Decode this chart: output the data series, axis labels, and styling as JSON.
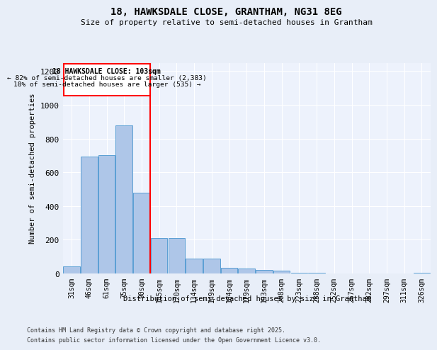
{
  "title_line1": "18, HAWKSDALE CLOSE, GRANTHAM, NG31 8EG",
  "title_line2": "Size of property relative to semi-detached houses in Grantham",
  "xlabel": "Distribution of semi-detached houses by size in Grantham",
  "ylabel": "Number of semi-detached properties",
  "categories": [
    "31sqm",
    "46sqm",
    "61sqm",
    "75sqm",
    "90sqm",
    "105sqm",
    "120sqm",
    "134sqm",
    "149sqm",
    "164sqm",
    "179sqm",
    "193sqm",
    "208sqm",
    "223sqm",
    "238sqm",
    "252sqm",
    "267sqm",
    "282sqm",
    "297sqm",
    "311sqm",
    "326sqm"
  ],
  "values": [
    40,
    695,
    700,
    880,
    480,
    210,
    210,
    90,
    90,
    35,
    30,
    20,
    15,
    5,
    5,
    2,
    2,
    1,
    1,
    0,
    5
  ],
  "bar_color": "#aec6e8",
  "bar_edge_color": "#5a9fd4",
  "vline_color": "red",
  "annotation_title": "18 HAWKSDALE CLOSE: 103sqm",
  "annotation_line1": "← 82% of semi-detached houses are smaller (2,383)",
  "annotation_line2": "18% of semi-detached houses are larger (535) →",
  "annotation_box_color": "red",
  "ylim": [
    0,
    1250
  ],
  "yticks": [
    0,
    200,
    400,
    600,
    800,
    1000,
    1200
  ],
  "footer_line1": "Contains HM Land Registry data © Crown copyright and database right 2025.",
  "footer_line2": "Contains public sector information licensed under the Open Government Licence v3.0.",
  "bg_color": "#e8eef8",
  "plot_bg_color": "#edf2fc"
}
